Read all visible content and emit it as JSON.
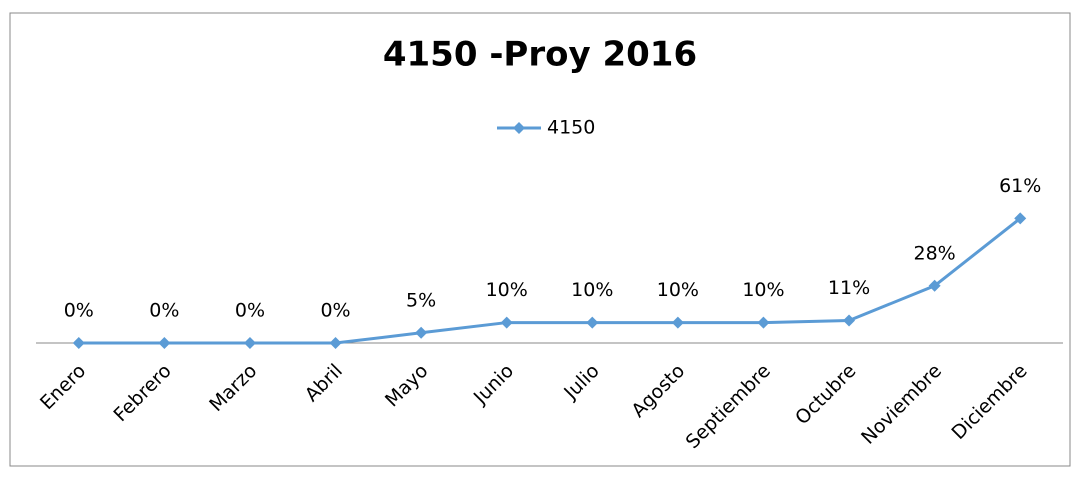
{
  "chart_data": {
    "type": "line",
    "title": "4150 -Proy 2016",
    "categories": [
      "Enero",
      "Febrero",
      "Marzo",
      "Abril",
      "Mayo",
      "Junio",
      "Julio",
      "Agosto",
      "Septiembre",
      "Octubre",
      "Noviembre",
      "Diciembre"
    ],
    "series": [
      {
        "name": "4150",
        "color": "#5b9bd5",
        "values": [
          0,
          0,
          0,
          0,
          5,
          10,
          10,
          10,
          10,
          11,
          28,
          61
        ],
        "value_labels": [
          "0%",
          "0%",
          "0%",
          "0%",
          "5%",
          "10%",
          "10%",
          "10%",
          "10%",
          "11%",
          "28%",
          "61%"
        ]
      }
    ],
    "ylim": [
      0,
      70
    ],
    "legend": "top"
  }
}
